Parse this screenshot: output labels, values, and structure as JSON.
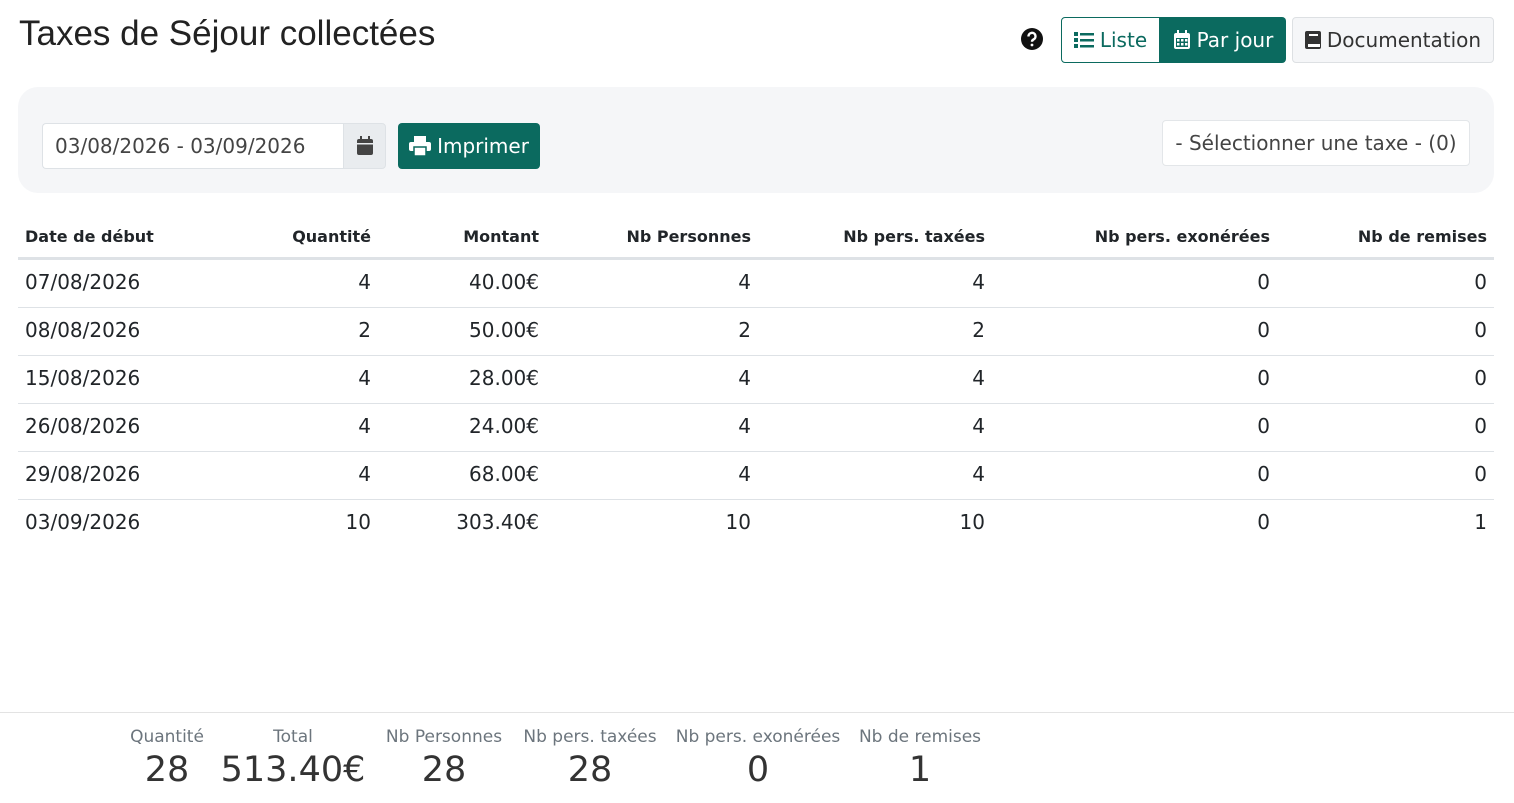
{
  "header": {
    "title": "Taxes de Séjour collectées",
    "buttons": [
      "Liste",
      "Par jour",
      "Documentation"
    ]
  },
  "filters": {
    "date_range": "03/08/2026 - 03/09/2026",
    "print": "Imprimer",
    "tax_select": "- Sélectionner une taxe - (0)"
  },
  "table": {
    "columns": [
      "Date de début",
      "Quantité",
      "Montant",
      "Nb Personnes",
      "Nb pers. taxées",
      "Nb pers. exonérées",
      "Nb de remises"
    ],
    "rows": [
      [
        "07/08/2026",
        4,
        "40.00€",
        4,
        4,
        0,
        0
      ],
      [
        "08/08/2026",
        2,
        "50.00€",
        2,
        2,
        0,
        0
      ],
      [
        "15/08/2026",
        4,
        "28.00€",
        4,
        4,
        0,
        0
      ],
      [
        "26/08/2026",
        4,
        "24.00€",
        4,
        4,
        0,
        0
      ],
      [
        "29/08/2026",
        4,
        "68.00€",
        4,
        4,
        0,
        0
      ],
      [
        "03/09/2026",
        10,
        "303.40€",
        10,
        10,
        0,
        1
      ]
    ]
  },
  "totals": [
    {
      "label": "Quantité",
      "value": 28
    },
    {
      "label": "Total",
      "value": "513.40€"
    },
    {
      "label": "Nb Personnes",
      "value": 28
    },
    {
      "label": "Nb pers. taxées",
      "value": 28
    },
    {
      "label": "Nb pers. exonérées",
      "value": 0
    },
    {
      "label": "Nb de remises",
      "value": 1
    }
  ]
}
